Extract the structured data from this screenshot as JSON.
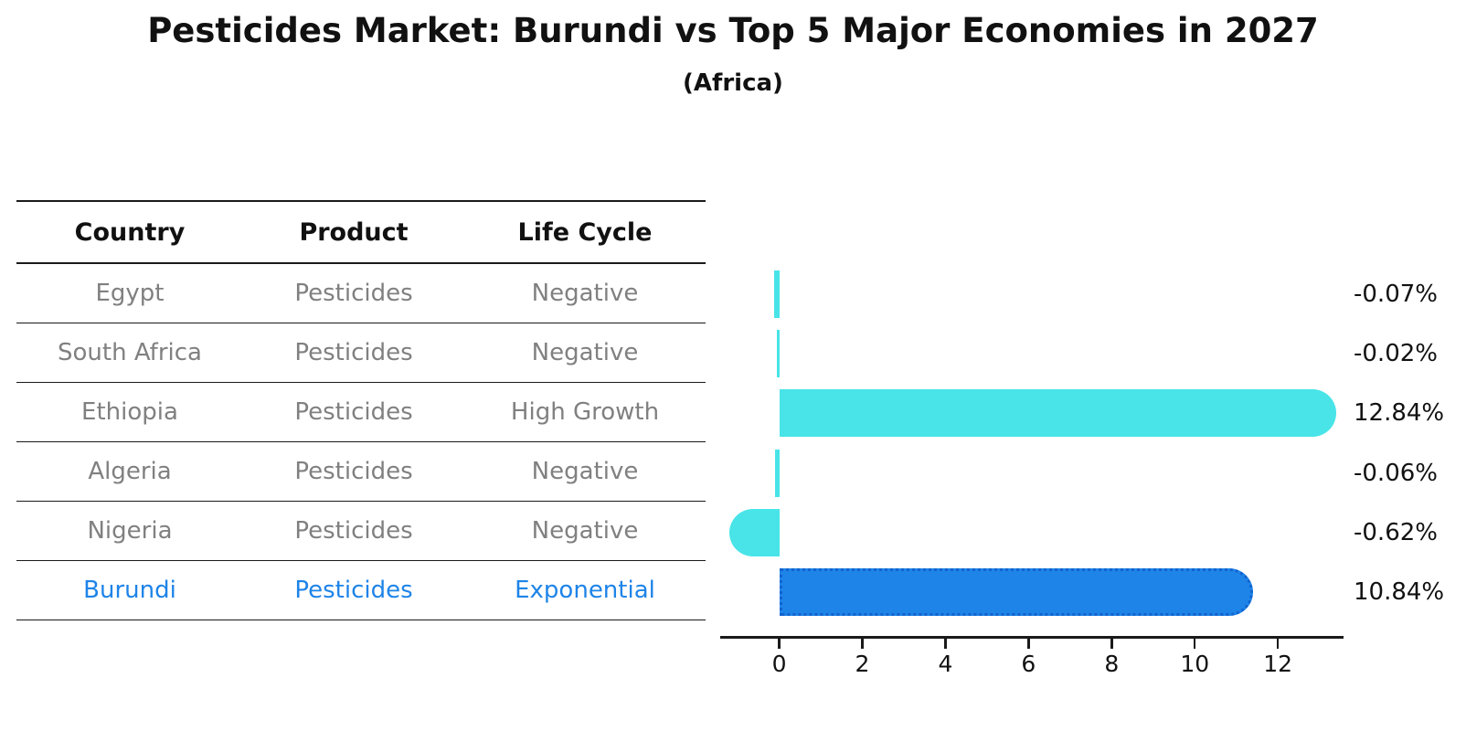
{
  "title": "Pesticides Market: Burundi vs Top 5 Major Economies in 2027",
  "subtitle": "(Africa)",
  "table": {
    "headers": [
      "Country",
      "Product",
      "Life Cycle"
    ],
    "rows": [
      {
        "country": "Egypt",
        "product": "Pesticides",
        "life_cycle": "Negative",
        "highlight": false
      },
      {
        "country": "South Africa",
        "product": "Pesticides",
        "life_cycle": "Negative",
        "highlight": false
      },
      {
        "country": "Ethiopia",
        "product": "Pesticides",
        "life_cycle": "High Growth",
        "highlight": false
      },
      {
        "country": "Algeria",
        "product": "Pesticides",
        "life_cycle": "Negative",
        "highlight": false
      },
      {
        "country": "Nigeria",
        "product": "Pesticides",
        "life_cycle": "Negative",
        "highlight": false
      },
      {
        "country": "Burundi",
        "product": "Pesticides",
        "life_cycle": "Exponential",
        "highlight": true
      }
    ]
  },
  "chart_data": {
    "type": "bar",
    "orientation": "horizontal",
    "title": "Pesticides Market: Burundi vs Top 5 Major Economies in 2027 (Africa)",
    "categories": [
      "Egypt",
      "South Africa",
      "Ethiopia",
      "Algeria",
      "Nigeria",
      "Burundi"
    ],
    "values": [
      -0.07,
      -0.02,
      12.84,
      -0.06,
      -0.62,
      10.84
    ],
    "value_labels": [
      "-0.07%",
      "-0.02%",
      "12.84%",
      "-0.06%",
      "-0.62%",
      "10.84%"
    ],
    "x_ticks": [
      0,
      2,
      4,
      6,
      8,
      10,
      12
    ],
    "xlim": [
      -1.42,
      13.58
    ],
    "grid": false,
    "legend": "none",
    "highlight_index": 5
  },
  "colors": {
    "bar_default": "#48E4E8",
    "bar_highlight": "#1E84E8",
    "bar_highlight_border": "#1263CE",
    "table_text": "#808080",
    "highlight_text": "#1E84E8",
    "axis_and_lines": "#1a1a1a",
    "background": "#ffffff"
  }
}
